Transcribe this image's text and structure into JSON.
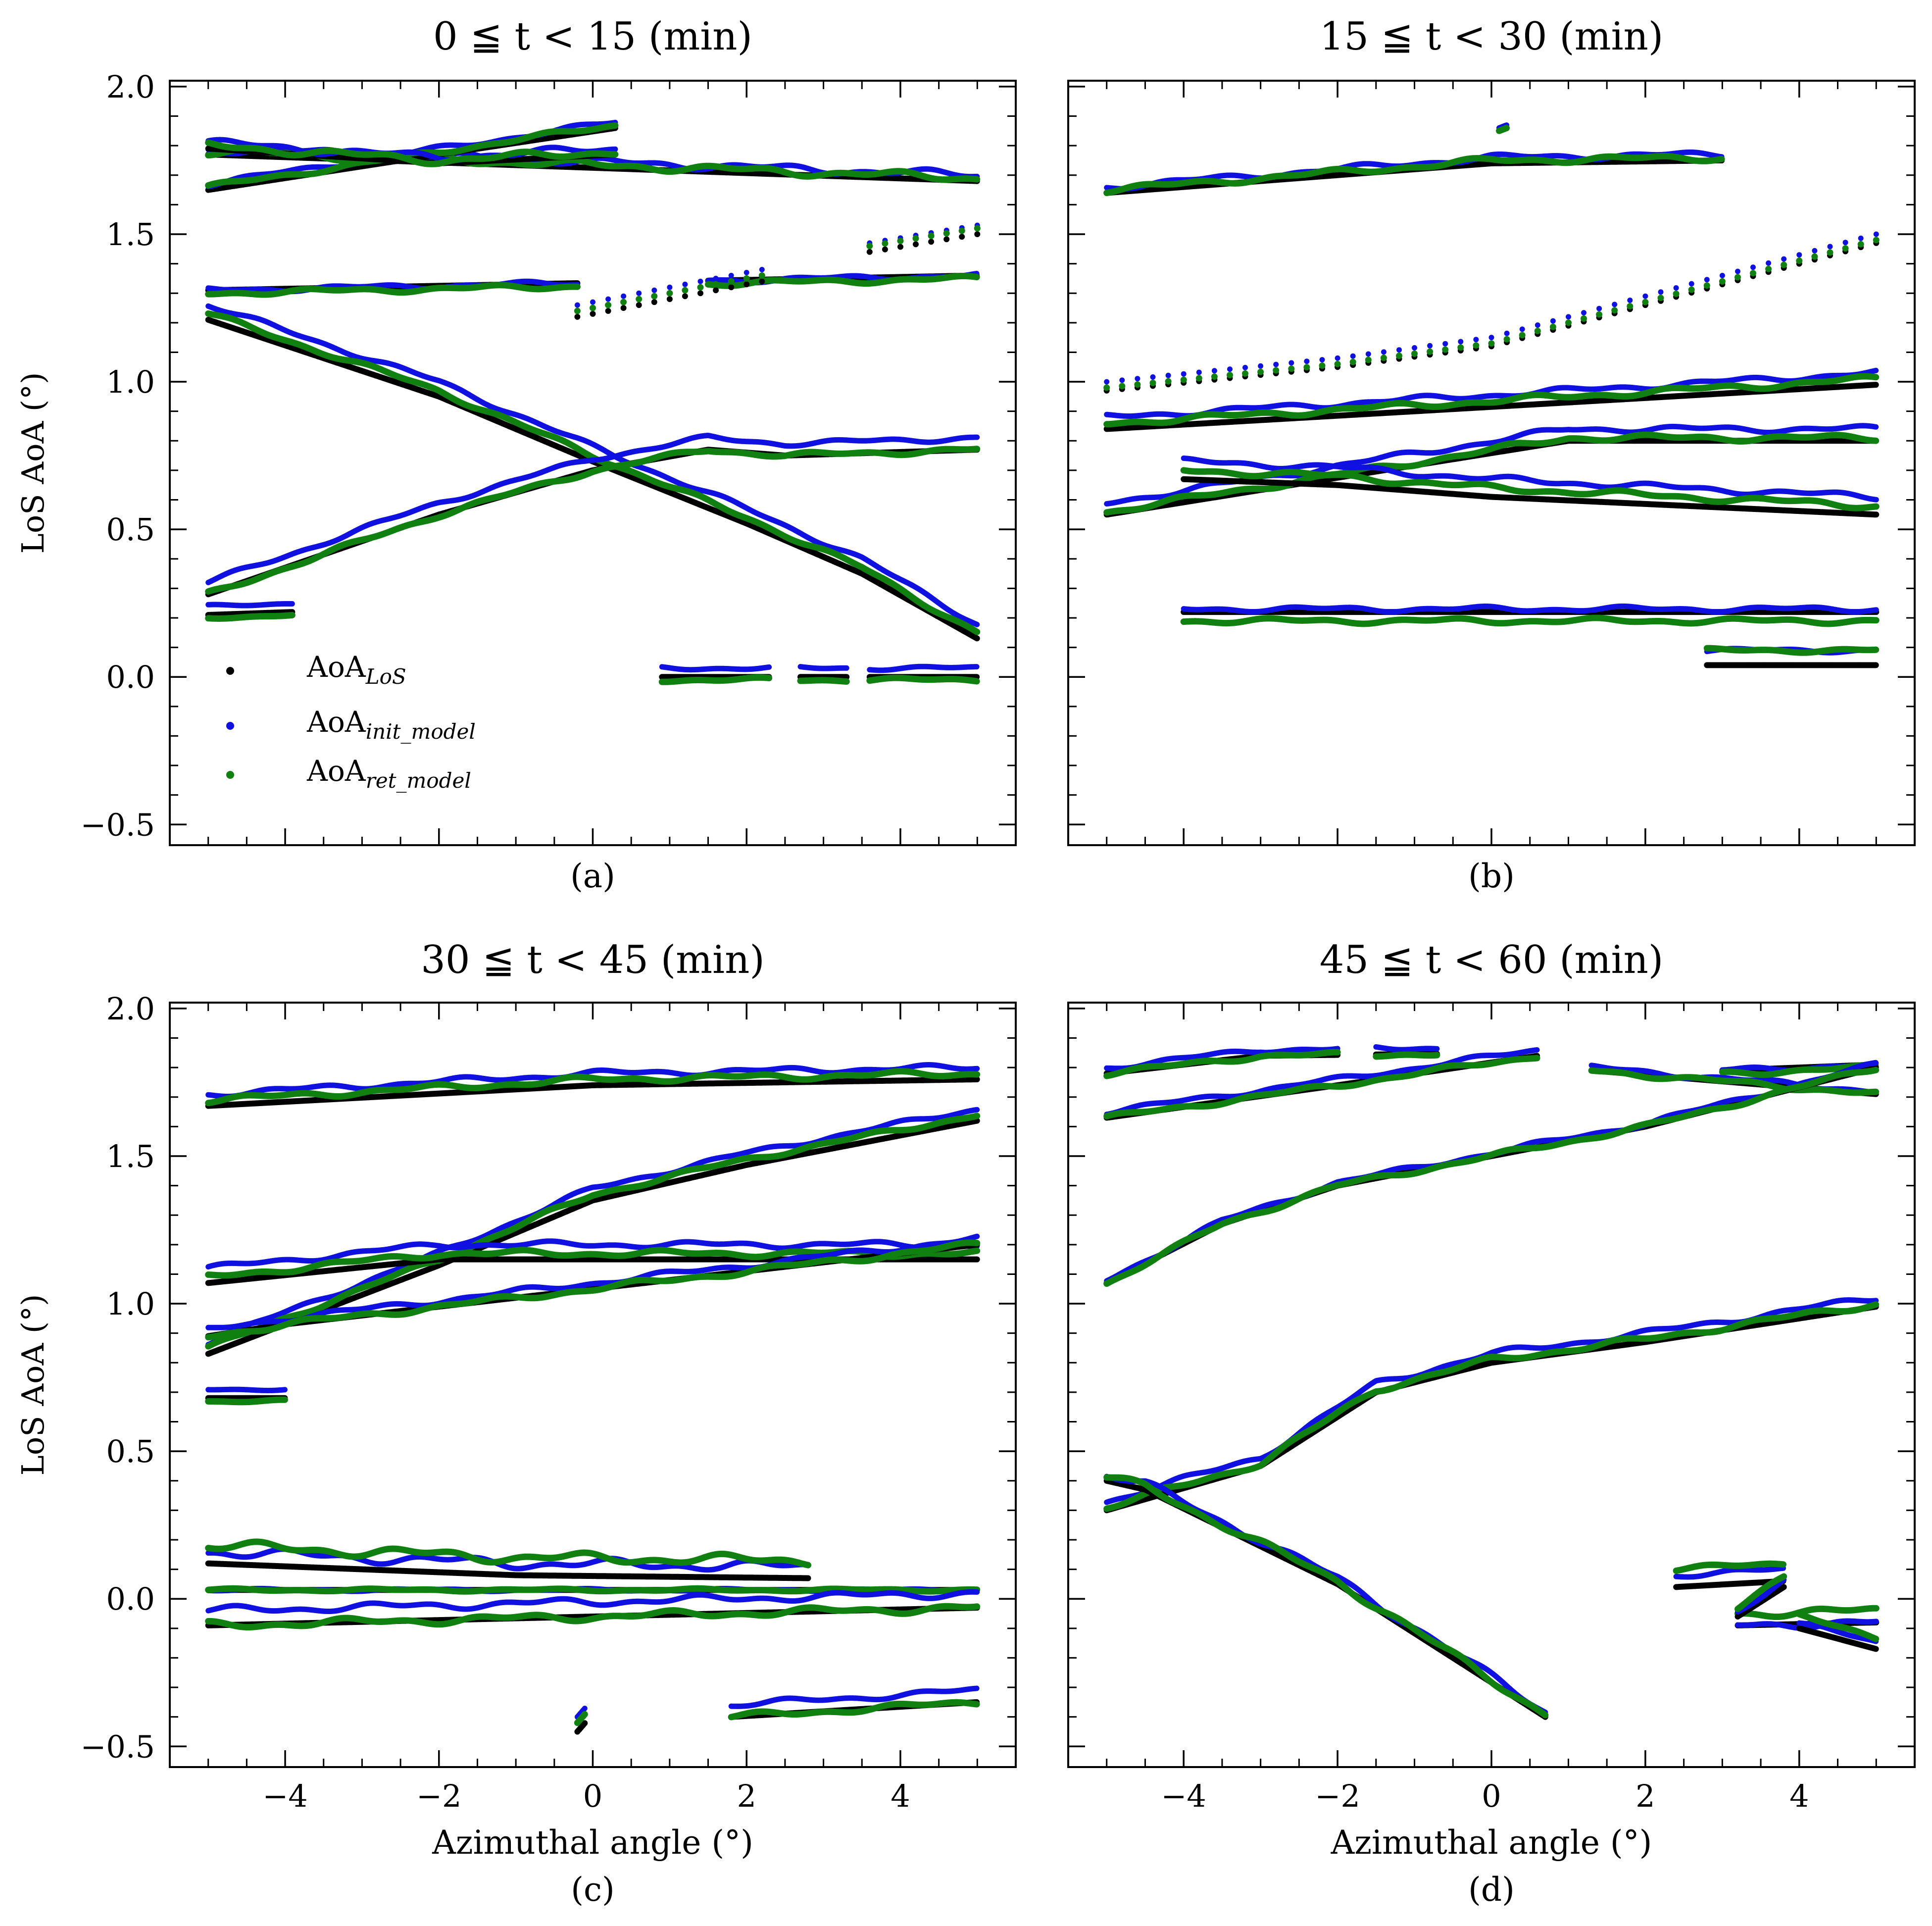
{
  "figure": {
    "ylabel": "LoS AoA (°)",
    "xlabel": "Azimuthal angle (°)",
    "legend": {
      "placement": "lower-left of panel (a)",
      "entries": [
        {
          "label": "AoA",
          "sub": "LoS",
          "color": "#000000"
        },
        {
          "label": "AoA",
          "sub": "init_model",
          "color": "#1010e0"
        },
        {
          "label": "AoA",
          "sub": "ret_model",
          "color": "#108010"
        }
      ]
    },
    "colors": {
      "los": "#000000",
      "init": "#1010e0",
      "ret": "#108010"
    }
  },
  "chart_data": [
    {
      "type": "scatter",
      "title": "0 ≦ t < 15 (min)",
      "panel_label": "(a)",
      "xlabel": "",
      "ylabel": "LoS AoA (°)",
      "xlim": [
        -5.5,
        5.5
      ],
      "ylim": [
        -0.57,
        2.02
      ],
      "xticks": [
        -4,
        -2,
        0,
        2,
        4
      ],
      "yticks": [
        -0.5,
        0.0,
        0.5,
        1.0,
        1.5,
        2.0
      ],
      "show_xticklabels": false,
      "show_yticklabels": true,
      "tracks": [
        {
          "x": [
            -5.0,
            5.0
          ],
          "y": [
            1.77,
            1.68
          ],
          "segments": [
            [
              -5.0,
              5.0
            ]
          ],
          "init_offset": 0.02,
          "ret_offset": 0.01,
          "noise": 0.015
        },
        {
          "x": [
            -5.0,
            -2.0,
            0.3
          ],
          "y": [
            1.65,
            1.77,
            1.86
          ],
          "segments": [
            [
              -5.0,
              0.3
            ]
          ],
          "init_offset": 0.02,
          "ret_offset": 0.01,
          "noise": 0.01
        },
        {
          "x": [
            -5.0,
            -2.0,
            0.3
          ],
          "y": [
            1.79,
            1.74,
            1.77
          ],
          "segments": [
            [
              -5.0,
              0.3
            ]
          ],
          "init_offset": 0.02,
          "ret_offset": 0.01,
          "noise": 0.015
        },
        {
          "x": [
            -5.0,
            5.0
          ],
          "y": [
            1.31,
            1.36
          ],
          "segments": [
            [
              -5.0,
              -0.2
            ],
            [
              1.5,
              5.0
            ]
          ],
          "init_offset": 0.0,
          "ret_offset": -0.01,
          "noise": 0.01
        },
        {
          "x": [
            -0.2,
            2.2
          ],
          "y": [
            1.22,
            1.34
          ],
          "segments": [
            [
              -0.2,
              2.2
            ]
          ],
          "init_offset": 0.04,
          "ret_offset": 0.02,
          "noise": 0.0,
          "sparse": true
        },
        {
          "x": [
            3.6,
            5.0
          ],
          "y": [
            1.44,
            1.5
          ],
          "segments": [
            [
              3.6,
              5.0
            ]
          ],
          "init_offset": 0.03,
          "ret_offset": 0.02,
          "noise": 0.0,
          "sparse": true
        },
        {
          "x": [
            -5.0,
            -2.0,
            0.0,
            2.0,
            3.5,
            5.0
          ],
          "y": [
            1.21,
            0.95,
            0.73,
            0.52,
            0.35,
            0.13
          ],
          "segments": [
            [
              -5.0,
              5.0
            ]
          ],
          "init_offset": 0.05,
          "ret_offset": 0.02,
          "noise": 0.01
        },
        {
          "x": [
            -5.0,
            -2.0,
            0.0,
            1.5,
            2.5,
            5.0
          ],
          "y": [
            0.28,
            0.55,
            0.7,
            0.77,
            0.75,
            0.77
          ],
          "segments": [
            [
              -5.0,
              5.0
            ]
          ],
          "init_offset": 0.04,
          "ret_offset": 0.0,
          "noise": 0.01
        },
        {
          "x": [
            -5.0,
            -3.9
          ],
          "y": [
            0.21,
            0.22
          ],
          "segments": [
            [
              -5.0,
              -3.9
            ]
          ],
          "init_offset": 0.03,
          "ret_offset": -0.01,
          "noise": 0.005
        },
        {
          "x": [
            0.9,
            5.0
          ],
          "y": [
            0.0,
            0.0
          ],
          "segments": [
            [
              0.9,
              2.3
            ],
            [
              2.7,
              3.3
            ],
            [
              3.6,
              5.0
            ]
          ],
          "init_offset": 0.03,
          "ret_offset": -0.01,
          "noise": 0.008
        }
      ]
    },
    {
      "type": "scatter",
      "title": "15 ≦ t < 30 (min)",
      "panel_label": "(b)",
      "xlabel": "",
      "ylabel": "",
      "xlim": [
        -5.5,
        5.5
      ],
      "ylim": [
        -0.57,
        2.02
      ],
      "xticks": [
        -4,
        -2,
        0,
        2,
        4
      ],
      "yticks": [
        -0.5,
        0.0,
        0.5,
        1.0,
        1.5,
        2.0
      ],
      "show_xticklabels": false,
      "show_yticklabels": false,
      "tracks": [
        {
          "x": [
            -5.0,
            -2.0,
            0.0,
            3.0
          ],
          "y": [
            1.64,
            1.7,
            1.74,
            1.75
          ],
          "segments": [
            [
              -5.0,
              3.0
            ]
          ],
          "init_offset": 0.02,
          "ret_offset": 0.01,
          "noise": 0.012
        },
        {
          "x": [
            0.1,
            0.2
          ],
          "y": [
            1.85,
            1.86
          ],
          "segments": [
            [
              0.1,
              0.2
            ]
          ],
          "init_offset": 0.01,
          "ret_offset": 0.0,
          "noise": 0.0
        },
        {
          "x": [
            -5.0,
            -2.0,
            0.0,
            5.0
          ],
          "y": [
            0.97,
            1.05,
            1.12,
            1.47
          ],
          "segments": [
            [
              -5.0,
              5.0
            ]
          ],
          "init_offset": 0.03,
          "ret_offset": 0.01,
          "noise": 0.0,
          "sparse": true
        },
        {
          "x": [
            -5.0,
            5.0
          ],
          "y": [
            0.84,
            0.99
          ],
          "segments": [
            [
              -5.0,
              5.0
            ]
          ],
          "init_offset": 0.04,
          "ret_offset": 0.02,
          "noise": 0.012
        },
        {
          "x": [
            -5.0,
            1.0,
            5.0
          ],
          "y": [
            0.55,
            0.8,
            0.8
          ],
          "segments": [
            [
              -5.0,
              5.0
            ]
          ],
          "init_offset": 0.04,
          "ret_offset": 0.01,
          "noise": 0.012
        },
        {
          "x": [
            -4.0,
            -2.0,
            0.0,
            5.0
          ],
          "y": [
            0.67,
            0.65,
            0.61,
            0.55
          ],
          "segments": [
            [
              -4.0,
              5.0
            ]
          ],
          "init_offset": 0.06,
          "ret_offset": 0.03,
          "noise": 0.012
        },
        {
          "x": [
            -4.0,
            5.0
          ],
          "y": [
            0.22,
            0.22
          ],
          "segments": [
            [
              -4.0,
              5.0
            ]
          ],
          "init_offset": 0.01,
          "ret_offset": -0.03,
          "noise": 0.01
        },
        {
          "x": [
            2.8,
            5.0
          ],
          "y": [
            0.04,
            0.04
          ],
          "segments": [
            [
              2.8,
              5.0
            ]
          ],
          "init_offset": 0.05,
          "ret_offset": 0.05,
          "noise": 0.008
        }
      ]
    },
    {
      "type": "scatter",
      "title": "30 ≦ t < 45 (min)",
      "panel_label": "(c)",
      "xlabel": "Azimuthal angle (°)",
      "ylabel": "LoS AoA (°)",
      "xlim": [
        -5.5,
        5.5
      ],
      "ylim": [
        -0.57,
        2.02
      ],
      "xticks": [
        -4,
        -2,
        0,
        2,
        4
      ],
      "yticks": [
        -0.5,
        0.0,
        0.5,
        1.0,
        1.5,
        2.0
      ],
      "show_xticklabels": true,
      "show_yticklabels": true,
      "tracks": [
        {
          "x": [
            -5.0,
            0.0,
            5.0
          ],
          "y": [
            1.67,
            1.74,
            1.76
          ],
          "segments": [
            [
              -5.0,
              5.0
            ]
          ],
          "init_offset": 0.04,
          "ret_offset": 0.02,
          "noise": 0.012
        },
        {
          "x": [
            -5.0,
            -2.0,
            0.0,
            2.0,
            5.0
          ],
          "y": [
            0.83,
            1.13,
            1.35,
            1.47,
            1.62
          ],
          "segments": [
            [
              -5.0,
              5.0
            ]
          ],
          "init_offset": 0.04,
          "ret_offset": 0.02,
          "noise": 0.01
        },
        {
          "x": [
            -5.0,
            -2.0,
            5.0
          ],
          "y": [
            1.07,
            1.15,
            1.15
          ],
          "segments": [
            [
              -5.0,
              5.0
            ]
          ],
          "init_offset": 0.05,
          "ret_offset": 0.02,
          "noise": 0.012
        },
        {
          "x": [
            -5.0,
            -4.0,
            5.0
          ],
          "y": [
            0.89,
            0.93,
            1.2
          ],
          "segments": [
            [
              -5.0,
              5.0
            ]
          ],
          "init_offset": 0.02,
          "ret_offset": 0.0,
          "noise": 0.012
        },
        {
          "x": [
            -5.0,
            -4.0
          ],
          "y": [
            0.68,
            0.68
          ],
          "segments": [
            [
              -5.0,
              -4.0
            ]
          ],
          "init_offset": 0.03,
          "ret_offset": -0.01,
          "noise": 0.005
        },
        {
          "x": [
            -5.0,
            -1.0,
            2.8
          ],
          "y": [
            0.12,
            0.08,
            0.07
          ],
          "segments": [
            [
              -5.0,
              2.8
            ]
          ],
          "init_offset": 0.04,
          "ret_offset": 0.06,
          "noise": 0.02
        },
        {
          "x": [
            -5.0,
            5.0
          ],
          "y": [
            0.03,
            0.03
          ],
          "segments": [
            [
              -5.0,
              5.0
            ]
          ],
          "init_offset": 0.0,
          "ret_offset": 0.0,
          "noise": 0.005
        },
        {
          "x": [
            -5.0,
            5.0
          ],
          "y": [
            -0.09,
            -0.03
          ],
          "segments": [
            [
              -5.0,
              5.0
            ]
          ],
          "init_offset": 0.05,
          "ret_offset": 0.0,
          "noise": 0.015
        },
        {
          "x": [
            -0.2,
            -0.1
          ],
          "y": [
            -0.45,
            -0.42
          ],
          "segments": [
            [
              -0.2,
              -0.1
            ]
          ],
          "init_offset": 0.05,
          "ret_offset": 0.03,
          "noise": 0.0
        },
        {
          "x": [
            1.8,
            5.0
          ],
          "y": [
            -0.4,
            -0.35
          ],
          "segments": [
            [
              1.8,
              5.0
            ]
          ],
          "init_offset": 0.04,
          "ret_offset": 0.0,
          "noise": 0.012
        }
      ]
    },
    {
      "type": "scatter",
      "title": "45 ≦ t < 60 (min)",
      "panel_label": "(d)",
      "xlabel": "Azimuthal angle (°)",
      "ylabel": "",
      "xlim": [
        -5.5,
        5.5
      ],
      "ylim": [
        -0.57,
        2.02
      ],
      "xticks": [
        -4,
        -2,
        0,
        2,
        4
      ],
      "yticks": [
        -0.5,
        0.0,
        0.5,
        1.0,
        1.5,
        2.0
      ],
      "show_xticklabels": true,
      "show_yticklabels": false,
      "tracks": [
        {
          "x": [
            -5.0,
            -3.0,
            0.5
          ],
          "y": [
            1.78,
            1.84,
            1.85
          ],
          "segments": [
            [
              -5.0,
              -2.0
            ],
            [
              -1.5,
              -0.7
            ]
          ],
          "init_offset": 0.02,
          "ret_offset": 0.0,
          "noise": 0.01
        },
        {
          "x": [
            -5.0,
            -2.0,
            0.6
          ],
          "y": [
            1.63,
            1.74,
            1.84
          ],
          "segments": [
            [
              -5.0,
              0.6
            ]
          ],
          "init_offset": 0.02,
          "ret_offset": 0.0,
          "noise": 0.01
        },
        {
          "x": [
            1.3,
            5.0
          ],
          "y": [
            1.79,
            1.71
          ],
          "segments": [
            [
              1.3,
              5.0
            ]
          ],
          "init_offset": 0.01,
          "ret_offset": 0.0,
          "noise": 0.01
        },
        {
          "x": [
            1.3,
            3.0,
            5.0
          ],
          "y": [
            1.79,
            1.79,
            1.81
          ],
          "segments": [
            [
              3.0,
              5.0
            ]
          ],
          "init_offset": 0.0,
          "ret_offset": -0.01,
          "noise": 0.01
        },
        {
          "x": [
            -5.0,
            -3.5,
            -2.0,
            0.0,
            2.0,
            5.0
          ],
          "y": [
            1.07,
            1.27,
            1.4,
            1.5,
            1.6,
            1.8
          ],
          "segments": [
            [
              -5.0,
              5.0
            ]
          ],
          "init_offset": 0.01,
          "ret_offset": 0.0,
          "noise": 0.01
        },
        {
          "x": [
            -5.0,
            -3.0,
            -1.5,
            0.0,
            2.0,
            5.0
          ],
          "y": [
            0.3,
            0.45,
            0.7,
            0.8,
            0.87,
            0.99
          ],
          "segments": [
            [
              -5.0,
              5.0
            ]
          ],
          "init_offset": 0.03,
          "ret_offset": 0.01,
          "noise": 0.012
        },
        {
          "x": [
            -5.0,
            -4.5,
            -2.0,
            0.7
          ],
          "y": [
            0.4,
            0.37,
            0.05,
            -0.4
          ],
          "segments": [
            [
              -5.0,
              0.7
            ]
          ],
          "init_offset": 0.02,
          "ret_offset": 0.01,
          "noise": 0.015
        },
        {
          "x": [
            2.4,
            3.8
          ],
          "y": [
            0.04,
            0.06
          ],
          "segments": [
            [
              2.4,
              3.8
            ]
          ],
          "init_offset": 0.04,
          "ret_offset": 0.06,
          "noise": 0.01
        },
        {
          "x": [
            3.2,
            5.0
          ],
          "y": [
            -0.09,
            -0.08
          ],
          "segments": [
            [
              3.2,
              5.0
            ]
          ],
          "init_offset": 0.0,
          "ret_offset": 0.04,
          "noise": 0.015
        },
        {
          "x": [
            4.0,
            5.0
          ],
          "y": [
            -0.1,
            -0.17
          ],
          "segments": [
            [
              4.0,
              5.0
            ]
          ],
          "init_offset": 0.02,
          "ret_offset": 0.04,
          "noise": 0.01
        },
        {
          "x": [
            3.2,
            3.8
          ],
          "y": [
            -0.06,
            0.04
          ],
          "segments": [
            [
              3.2,
              3.8
            ]
          ],
          "init_offset": 0.02,
          "ret_offset": 0.03,
          "noise": 0.01
        }
      ]
    }
  ]
}
